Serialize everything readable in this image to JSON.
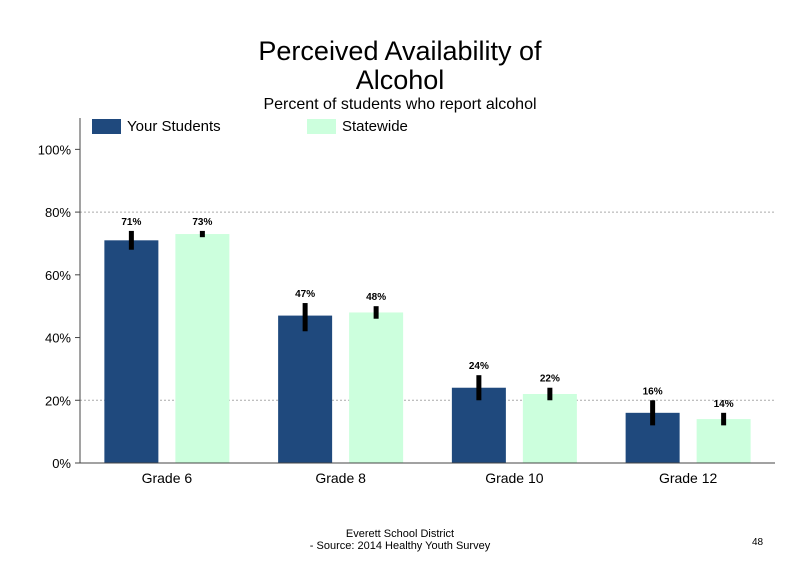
{
  "chart_data": {
    "type": "bar",
    "title": "Perceived Availability of Alcohol",
    "subtitle": "Percent of students  who report alcohol",
    "categories": [
      "Grade 6",
      "Grade 8",
      "Grade 10",
      "Grade 12"
    ],
    "series": [
      {
        "name": "Your Students",
        "color": "#1f497d",
        "values": [
          71,
          47,
          24,
          16
        ],
        "labels": [
          "71%",
          "47%",
          "24%",
          "16%"
        ],
        "error_low": [
          68,
          42,
          20,
          12
        ],
        "error_high": [
          74,
          51,
          28,
          20
        ]
      },
      {
        "name": "Statewide",
        "color": "#ccffdd",
        "values": [
          73,
          48,
          22,
          14
        ],
        "labels": [
          "73%",
          "48%",
          "22%",
          "14%"
        ],
        "error_low": [
          72,
          46,
          20,
          12
        ],
        "error_high": [
          74,
          50,
          24,
          16
        ]
      }
    ],
    "ylim": [
      0,
      110
    ],
    "yticks": [
      0,
      20,
      40,
      60,
      80,
      100
    ],
    "ytick_labels": [
      "0%",
      "20%",
      "40%",
      "60%",
      "80%",
      "100%"
    ],
    "grid_lines": [
      20,
      80
    ],
    "xlabel": "",
    "ylabel": "",
    "legend_position": "top"
  },
  "footer": {
    "line1": "Everett School District",
    "line2": "- Source: 2014 Healthy  Youth Survey"
  },
  "page_number": "48"
}
